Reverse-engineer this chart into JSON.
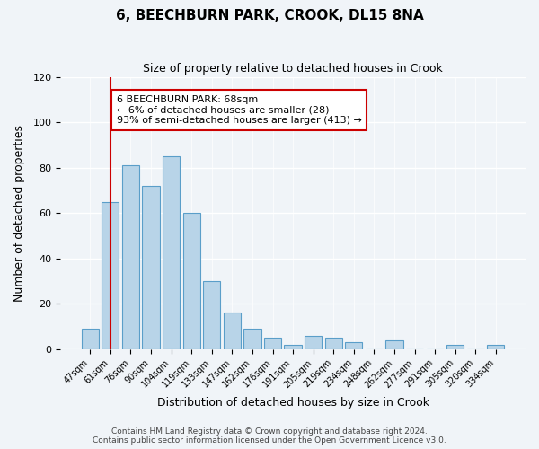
{
  "title": "6, BEECHBURN PARK, CROOK, DL15 8NA",
  "subtitle": "Size of property relative to detached houses in Crook",
  "xlabel": "Distribution of detached houses by size in Crook",
  "ylabel": "Number of detached properties",
  "bar_labels": [
    "47sqm",
    "61sqm",
    "76sqm",
    "90sqm",
    "104sqm",
    "119sqm",
    "133sqm",
    "147sqm",
    "162sqm",
    "176sqm",
    "191sqm",
    "205sqm",
    "219sqm",
    "234sqm",
    "248sqm",
    "262sqm",
    "277sqm",
    "291sqm",
    "305sqm",
    "320sqm",
    "334sqm"
  ],
  "bar_values": [
    9,
    65,
    81,
    72,
    85,
    60,
    30,
    16,
    9,
    5,
    2,
    6,
    5,
    3,
    0,
    4,
    0,
    0,
    2,
    0,
    2
  ],
  "bar_color": "#b8d4e8",
  "bar_edge_color": "#5a9ec9",
  "vline_x": 1,
  "vline_color": "#cc0000",
  "annotation_text": "6 BEECHBURN PARK: 68sqm\n← 6% of detached houses are smaller (28)\n93% of semi-detached houses are larger (413) →",
  "annotation_box_color": "white",
  "annotation_box_edge": "#cc0000",
  "ylim": [
    0,
    120
  ],
  "yticks": [
    0,
    20,
    40,
    60,
    80,
    100,
    120
  ],
  "footer_text": "Contains HM Land Registry data © Crown copyright and database right 2024.\nContains public sector information licensed under the Open Government Licence v3.0.",
  "bg_color": "#f0f4f8"
}
